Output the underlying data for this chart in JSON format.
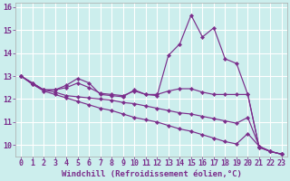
{
  "xlabel": "Windchill (Refroidissement éolien,°C)",
  "background_color": "#cceeed",
  "grid_color": "#b0dedd",
  "line_color": "#7b2d8b",
  "xlim": [
    -0.5,
    23.5
  ],
  "ylim": [
    9.5,
    16.2
  ],
  "xticks": [
    0,
    1,
    2,
    3,
    4,
    5,
    6,
    7,
    8,
    9,
    10,
    11,
    12,
    13,
    14,
    15,
    16,
    17,
    18,
    19,
    20,
    21,
    22,
    23
  ],
  "yticks": [
    10,
    11,
    12,
    13,
    14,
    15,
    16
  ],
  "series": [
    [
      13.0,
      12.7,
      12.4,
      12.4,
      12.6,
      12.9,
      12.7,
      12.2,
      12.15,
      12.1,
      12.4,
      12.2,
      12.15,
      13.9,
      14.4,
      15.65,
      14.7,
      15.1,
      13.75,
      13.55,
      12.2,
      9.9,
      9.72,
      9.6
    ],
    [
      13.0,
      12.7,
      12.4,
      12.4,
      12.5,
      12.7,
      12.5,
      12.25,
      12.2,
      12.15,
      12.35,
      12.2,
      12.2,
      12.35,
      12.45,
      12.45,
      12.3,
      12.2,
      12.2,
      12.2,
      12.2,
      9.9,
      9.72,
      9.6
    ],
    [
      13.0,
      12.65,
      12.4,
      12.3,
      12.15,
      12.1,
      12.05,
      12.0,
      11.95,
      11.85,
      11.8,
      11.7,
      11.6,
      11.5,
      11.4,
      11.35,
      11.25,
      11.15,
      11.05,
      10.95,
      11.2,
      9.95,
      9.72,
      9.6
    ],
    [
      13.0,
      12.65,
      12.35,
      12.2,
      12.05,
      11.9,
      11.75,
      11.6,
      11.5,
      11.35,
      11.2,
      11.1,
      11.0,
      10.85,
      10.7,
      10.6,
      10.45,
      10.3,
      10.15,
      10.05,
      10.5,
      9.95,
      9.72,
      9.6
    ]
  ],
  "marker": "D",
  "marker_size": 2.2,
  "line_width": 0.85,
  "font_size_xlabel": 6.5,
  "tick_font_size": 6.0
}
